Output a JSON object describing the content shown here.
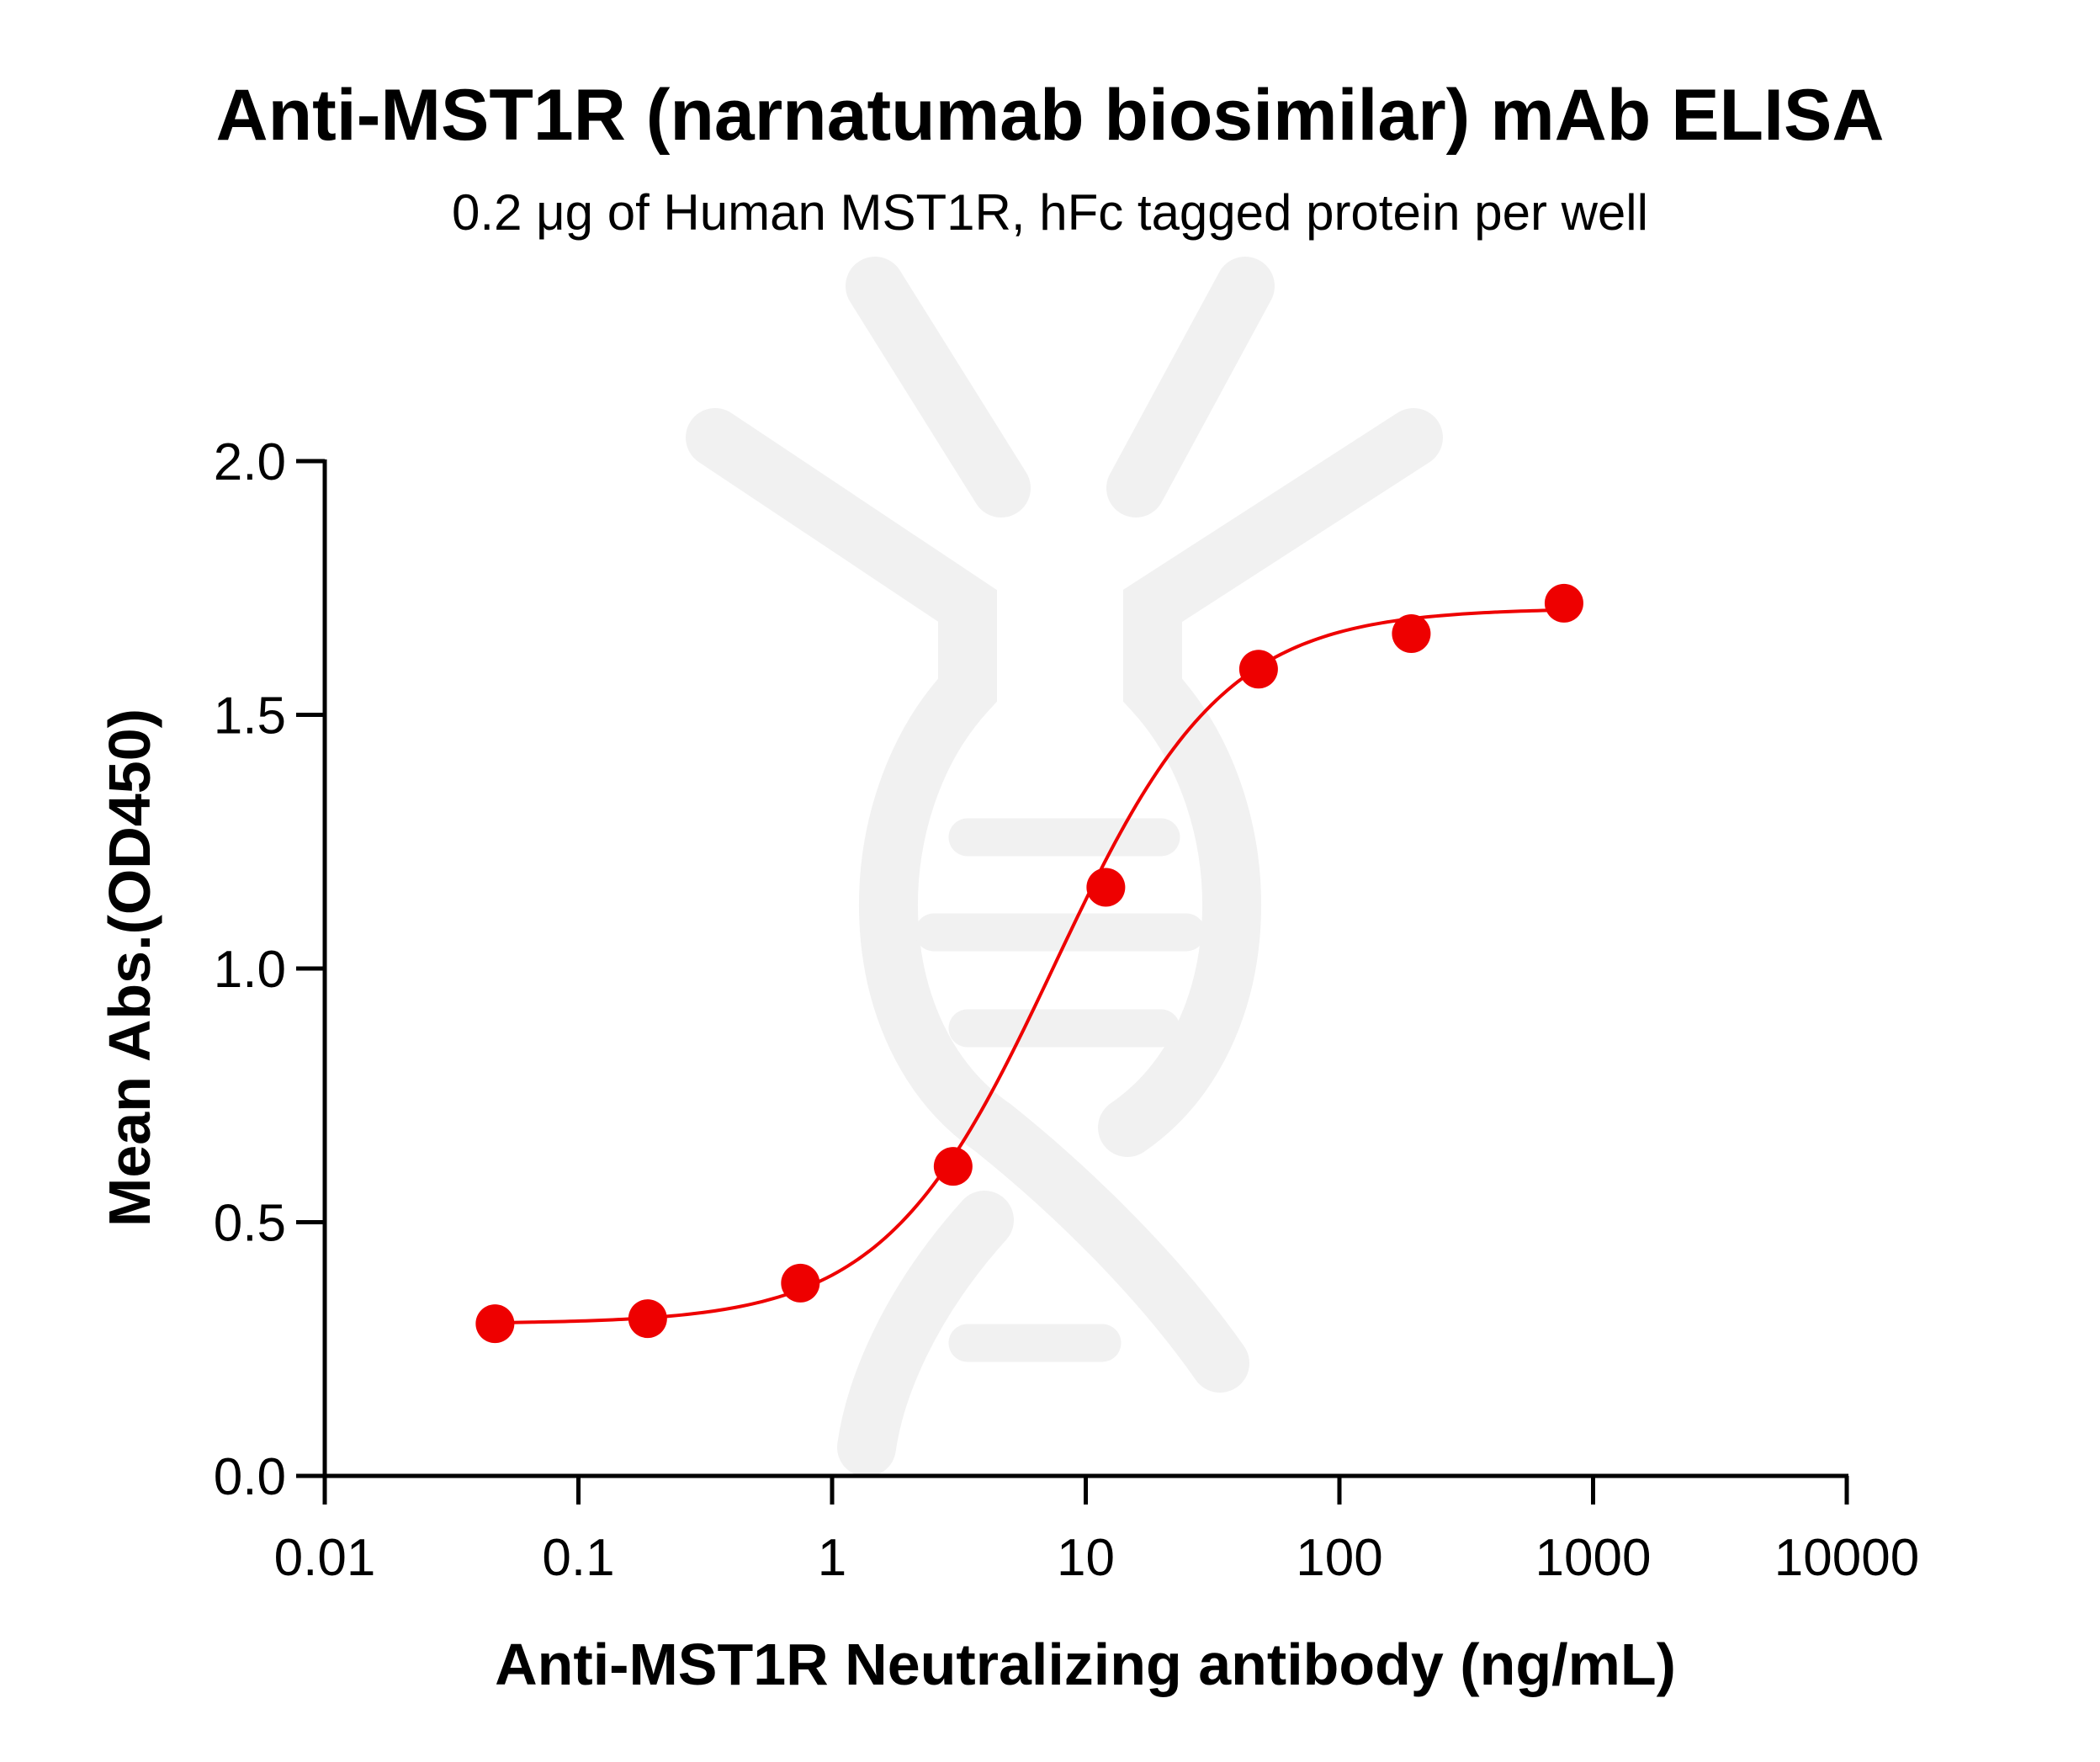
{
  "chart_data": {
    "type": "scatter",
    "title": "Anti-MST1R (narnatumab biosimilar) mAb ELISA",
    "subtitle": "0.2 μg of Human MST1R, hFc tagged protein per well",
    "xlabel": "Anti-MST1R Neutralizing antibody (ng/mL)",
    "ylabel": "Mean Abs.(OD450)",
    "x_scale": "log",
    "xlim": [
      0.01,
      10000
    ],
    "ylim": [
      0.0,
      2.0
    ],
    "x_ticks": [
      0.01,
      0.1,
      1,
      10,
      100,
      1000,
      10000
    ],
    "x_tick_labels": [
      "0.01",
      "0.1",
      "1",
      "10",
      "100",
      "1000",
      "10000"
    ],
    "y_ticks": [
      0.0,
      0.5,
      1.0,
      1.5,
      2.0
    ],
    "y_tick_labels": [
      "0.0",
      "0.5",
      "1.0",
      "1.5",
      "2.0"
    ],
    "grid": false,
    "legend": "none",
    "series": [
      {
        "x": [
          0.0469,
          0.1875,
          0.75,
          3,
          12,
          48,
          192,
          768
        ],
        "y": [
          0.3,
          0.31,
          0.38,
          0.61,
          1.16,
          1.59,
          1.66,
          1.72
        ],
        "fit": "4PL sigmoid",
        "fit_params": {
          "bottom": 0.3,
          "top": 1.71,
          "ec50": 7.5,
          "hill": 1.3
        },
        "color": "#ee0000"
      }
    ]
  }
}
